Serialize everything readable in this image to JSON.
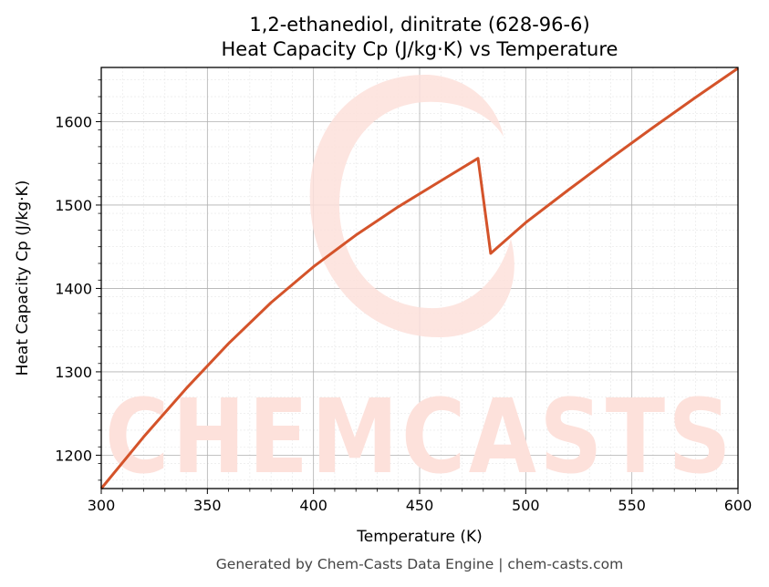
{
  "chart_data": {
    "type": "line",
    "title": "1,2-ethanediol, dinitrate (628-96-6)",
    "subtitle": "Heat Capacity Cp (J/kg·K) vs Temperature",
    "xlabel": "Temperature (K)",
    "ylabel": "Heat Capacity Cp (J/kg·K)",
    "xlim": [
      300,
      600
    ],
    "ylim": [
      1160,
      1665
    ],
    "xticks": [
      300,
      350,
      400,
      450,
      500,
      550,
      600
    ],
    "yticks": [
      1200,
      1300,
      1400,
      1500,
      1600
    ],
    "grid": true,
    "series": [
      {
        "color": "#d4532a",
        "x": [
          300,
          320,
          340,
          360,
          380,
          400,
          420,
          440,
          460,
          477.5,
          483.5,
          500,
          520,
          540,
          560,
          580,
          600
        ],
        "y": [
          1160,
          1222,
          1280,
          1334,
          1383,
          1426,
          1464,
          1498,
          1529,
          1556,
          1442,
          1479,
          1518,
          1556,
          1593,
          1629,
          1664
        ]
      }
    ]
  },
  "watermark": {
    "text": "CHEMCASTS",
    "color": "#fde1db"
  },
  "footer": "Generated by Chem-Casts Data Engine | chem-casts.com"
}
